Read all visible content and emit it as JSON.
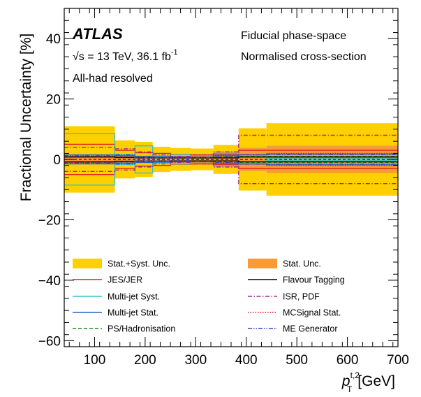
{
  "chart_data": {
    "type": "line",
    "title": "",
    "xlabel": {
      "base": "p",
      "sup": "t,2",
      "sub": "T",
      "unit": "[GeV]"
    },
    "ylabel": "Fractional Uncertainty [%]",
    "xlim": [
      40,
      700
    ],
    "ylim": [
      -62,
      50
    ],
    "xticks": [
      "100",
      "200",
      "300",
      "400",
      "500",
      "600",
      "700"
    ],
    "yticks": [
      "−60",
      "−40",
      "−20",
      "0",
      "20",
      "40"
    ],
    "annotations": {
      "experiment": "ATLAS",
      "energy": "√s = 13 TeV, 36.1 fb",
      "energy_sup": "-1",
      "channel": "All-had resolved",
      "phase_space": "Fiducial phase-space",
      "normalisation": "Normalised cross-section"
    },
    "bin_edges": [
      40,
      140,
      180,
      215,
      250,
      290,
      335,
      385,
      440,
      700
    ],
    "series": [
      {
        "name": "Stat.+Syst. Unc.",
        "style": "band",
        "color": "#FFD000",
        "values": [
          11.0,
          6.3,
          5.8,
          4.2,
          3.8,
          3.6,
          4.8,
          10.3,
          12.0
        ]
      },
      {
        "name": "Stat. Unc.",
        "style": "band",
        "color": "#F89A36",
        "values": [
          1.6,
          1.4,
          1.3,
          1.4,
          1.2,
          1.5,
          2.6,
          3.8,
          4.5
        ]
      },
      {
        "name": "JES/JER",
        "style": "solid",
        "color": "#E32216",
        "values": [
          5.0,
          3.0,
          2.2,
          2.0,
          1.6,
          1.5,
          1.8,
          3.0,
          3.0
        ]
      },
      {
        "name": "Multi-jet Syst.",
        "style": "solid",
        "color": "#33C3C9",
        "values": [
          8.5,
          1.7,
          4.5,
          1.0,
          1.5,
          0.5,
          2.0,
          0.9,
          0.4
        ]
      },
      {
        "name": "Multi-jet Stat.",
        "style": "solid",
        "color": "#1E68C9",
        "values": [
          1.5,
          1.2,
          1.0,
          0.9,
          0.8,
          0.8,
          1.4,
          1.5,
          1.8
        ]
      },
      {
        "name": "PS/Hadronisation",
        "style": "dashed",
        "color": "#1F8A1F",
        "values": [
          1.0,
          0.8,
          0.7,
          0.6,
          0.5,
          0.6,
          0.8,
          1.0,
          1.0
        ]
      },
      {
        "name": "Flavour Tagging",
        "style": "solid",
        "color": "#000000",
        "values": [
          0.8,
          0.6,
          0.5,
          0.5,
          0.5,
          0.5,
          0.5,
          0.8,
          0.8
        ]
      },
      {
        "name": "ISR, PDF",
        "style": "dashdot",
        "color": "#9E2A8E",
        "values": [
          4.0,
          3.5,
          2.5,
          1.5,
          1.0,
          1.5,
          2.5,
          8.0,
          8.0
        ]
      },
      {
        "name": "MCSignal Stat.",
        "style": "dotted",
        "color": "#E3101A",
        "values": [
          1.0,
          0.8,
          0.8,
          0.7,
          0.6,
          0.8,
          1.2,
          1.5,
          2.0
        ]
      },
      {
        "name": "ME Generator",
        "style": "dashdotdot",
        "color": "#3A44C6",
        "values": [
          1.2,
          1.5,
          0.5,
          0.5,
          0.4,
          0.6,
          1.0,
          1.6,
          1.6
        ]
      }
    ],
    "legend_position": "bottom",
    "grid": false
  }
}
